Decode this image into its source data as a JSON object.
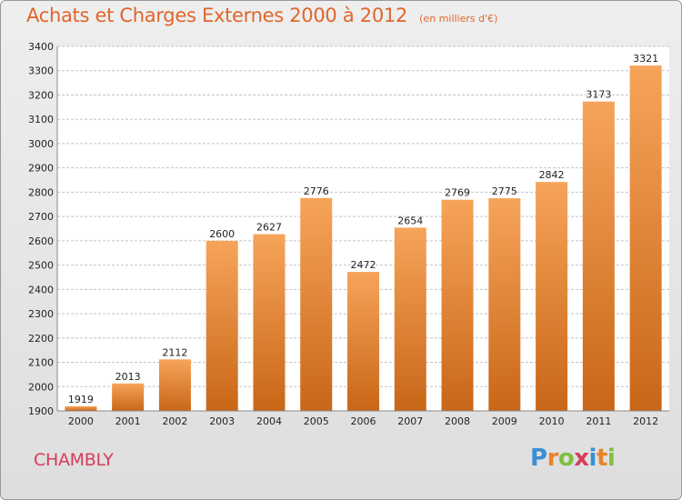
{
  "header": {
    "title": "Achats et Charges Externes 2000 à 2012",
    "subtitle": "(en milliers d'€)"
  },
  "footer": {
    "commune": "CHAMBLY",
    "logo_letters": [
      "P",
      "r",
      "o",
      "x",
      "i",
      "t",
      "i"
    ],
    "logo_colors": [
      "#3a8fd4",
      "#e8832c",
      "#7fbf3f",
      "#d63c5a",
      "#3a8fd4",
      "#e8832c",
      "#7fbf3f"
    ]
  },
  "colors": {
    "bar_top": "#f6a45a",
    "bar_bottom": "#c96617",
    "grid": "#c4c4c4",
    "accent": "#e0662a"
  },
  "chart_data": {
    "type": "bar",
    "categories": [
      "2000",
      "2001",
      "2002",
      "2003",
      "2004",
      "2005",
      "2006",
      "2007",
      "2008",
      "2009",
      "2010",
      "2011",
      "2012"
    ],
    "values": [
      1919,
      2013,
      2112,
      2600,
      2627,
      2776,
      2472,
      2654,
      2769,
      2775,
      2842,
      3173,
      3321
    ],
    "title": "Achats et Charges Externes 2000 à 2012",
    "subtitle": "(en milliers d'€)",
    "xlabel": "",
    "ylabel": "",
    "ylim": [
      1900,
      3400
    ],
    "yticks": [
      1900,
      2000,
      2100,
      2200,
      2300,
      2400,
      2500,
      2600,
      2700,
      2800,
      2900,
      3000,
      3100,
      3200,
      3300,
      3400
    ],
    "grid": true,
    "legend": "none"
  }
}
